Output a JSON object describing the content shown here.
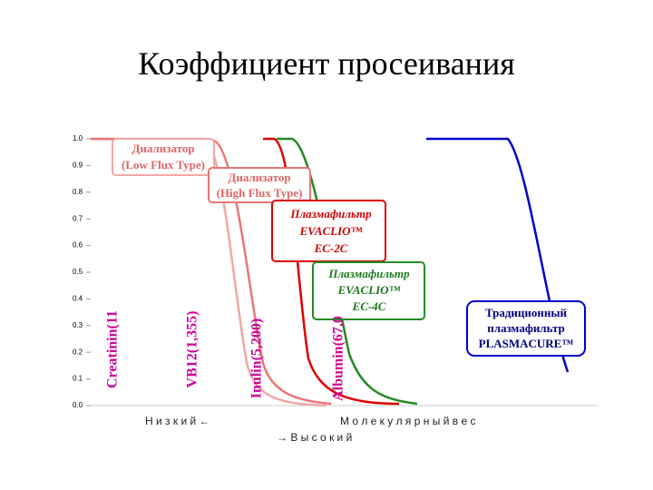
{
  "title": "Коэффициент просеивания",
  "chart_data": {
    "type": "line",
    "ylim": [
      0,
      1
    ],
    "yticks": [
      {
        "value": 0,
        "label": "0.0"
      },
      {
        "value": 0.1,
        "label": "0.1"
      },
      {
        "value": 0.2,
        "label": "0.2"
      },
      {
        "value": 0.3,
        "label": "0.3"
      },
      {
        "value": 0.4,
        "label": "0.4"
      },
      {
        "value": 0.5,
        "label": "0.5"
      },
      {
        "value": 0.6,
        "label": "0.6"
      },
      {
        "value": 0.7,
        "label": "0.7"
      },
      {
        "value": 0.8,
        "label": "0.8"
      },
      {
        "value": 0.9,
        "label": "0.9"
      },
      {
        "value": 1,
        "label": "1.0"
      }
    ],
    "x_label_low": "Н и з к и й ←",
    "x_label": "М о л е к у л я р н ы й   в е с",
    "x_label_high": "→ В ы с о к и й"
  },
  "boxes": [
    {
      "line1": "Диализатор",
      "line2": "(Low Flux Type)"
    },
    {
      "line1": "Диализатор",
      "line2": "(High Flux Type)"
    },
    {
      "line1": "Плазмафильтр",
      "line2": "EVACLIO™",
      "line3": "EC-2C"
    },
    {
      "line1": "Плазмафильтр",
      "line2": "EVACLIO™",
      "line3": "EC-4C"
    },
    {
      "line1": "Традиционный",
      "line2": "плазмафильтр",
      "line3": "PLASMACURE™"
    }
  ],
  "markers": [
    "Creatinin(11",
    "VB12(1,355)",
    "Inulin(5,200)",
    "Albumin(67,0"
  ]
}
